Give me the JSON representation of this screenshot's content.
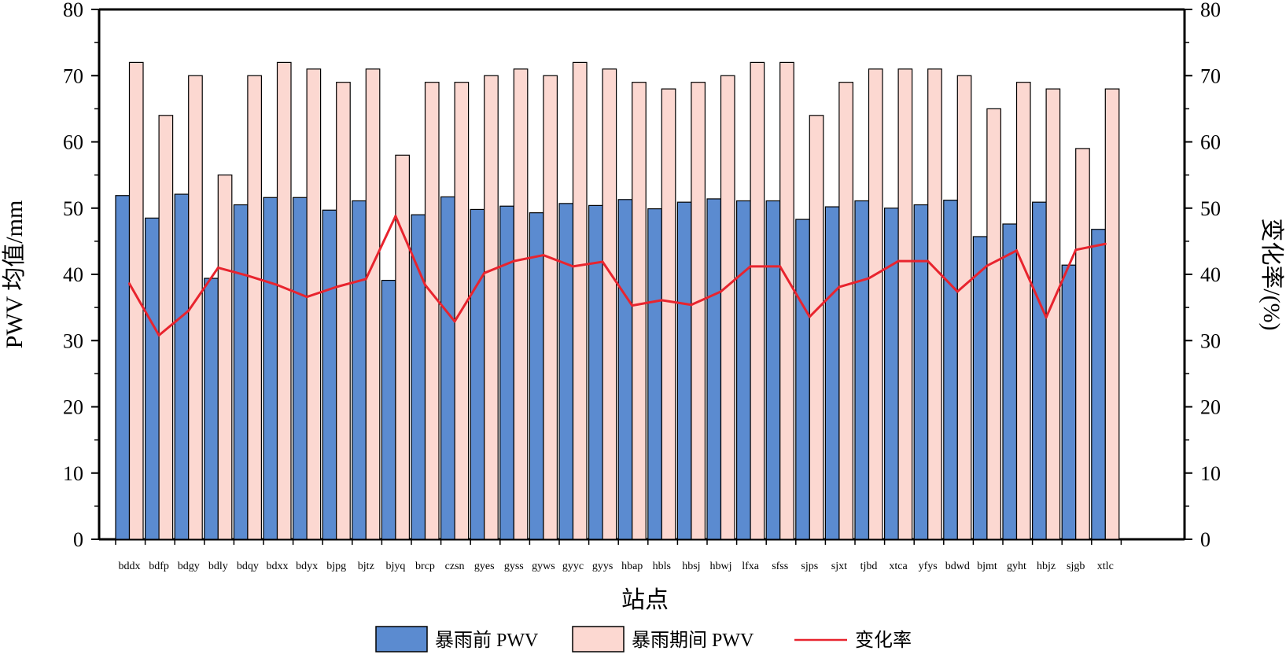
{
  "chart_data": {
    "type": "bar",
    "xlabel": "站点",
    "ylabel": "PWV 均值/mm",
    "y2label": "变化率/(%)",
    "ylim": [
      0,
      80
    ],
    "y2lim": [
      0,
      80
    ],
    "yticks": [
      "0",
      "10",
      "20",
      "30",
      "40",
      "50",
      "60",
      "70",
      "80"
    ],
    "y2ticks": [
      "0",
      "10",
      "20",
      "30",
      "40",
      "50",
      "60",
      "70",
      "80"
    ],
    "grid": false,
    "legend_position": "bottom",
    "categories": [
      "bddx",
      "bdfp",
      "bdgy",
      "bdly",
      "bdqy",
      "bdxx",
      "bdyx",
      "bjpg",
      "bjtz",
      "bjyq",
      "brcp",
      "czsn",
      "gyes",
      "gyss",
      "gyws",
      "gyyc",
      "gyys",
      "hbap",
      "hbls",
      "hbsj",
      "hbwj",
      "lfxa",
      "sfss",
      "sjps",
      "sjxt",
      "tjbd",
      "xtca",
      "yfys",
      "bdwd",
      "bjmt",
      "gyht",
      "hbjz",
      "sjgb",
      "xtlc"
    ],
    "series": [
      {
        "name": "暴雨前 PWV",
        "kind": "bar",
        "axis": "left",
        "color": "#5b8bd0",
        "values": [
          51.9,
          48.5,
          52.1,
          39.4,
          50.5,
          51.6,
          51.6,
          49.7,
          51.1,
          39.1,
          49.0,
          51.7,
          49.8,
          50.3,
          49.3,
          50.7,
          50.4,
          51.3,
          49.9,
          50.9,
          51.4,
          51.1,
          51.1,
          48.3,
          50.2,
          51.1,
          50.0,
          50.5,
          51.2,
          45.7,
          47.6,
          50.9,
          41.4,
          46.8
        ]
      },
      {
        "name": "暴雨期间 PWV",
        "kind": "bar",
        "axis": "left",
        "color": "#fcd8d1",
        "values": [
          72,
          64,
          70,
          55,
          70,
          72,
          71,
          69,
          71,
          58,
          69,
          69,
          70,
          71,
          70,
          72,
          71,
          69,
          68,
          69,
          70,
          72,
          72,
          64,
          69,
          71,
          71,
          71,
          70,
          65,
          69,
          68,
          59,
          68
        ]
      },
      {
        "name": "变化率",
        "kind": "line",
        "axis": "right",
        "color": "#e8242e",
        "values": [
          38.6,
          30.8,
          34.5,
          41.0,
          39.8,
          38.4,
          36.6,
          38.1,
          39.3,
          48.8,
          38.4,
          32.9,
          40.2,
          42.0,
          42.9,
          41.2,
          41.9,
          35.3,
          36.1,
          35.4,
          37.4,
          41.2,
          41.2,
          33.6,
          38.1,
          39.4,
          42.0,
          42.0,
          37.4,
          41.3,
          43.6,
          33.5,
          43.7,
          44.6
        ]
      }
    ]
  }
}
